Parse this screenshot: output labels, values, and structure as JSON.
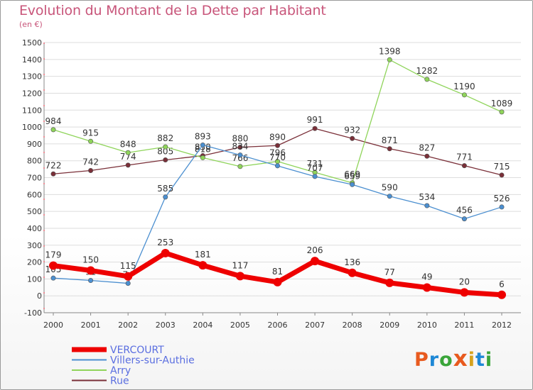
{
  "title": "Evolution du Montant de la Dette par Habitant",
  "subtitle": "(en €)",
  "logo": {
    "letters": [
      "P",
      "r",
      "o",
      "x",
      "i",
      "t",
      "i"
    ],
    "colors": [
      "#e85a1e",
      "#1e88d6",
      "#3aa53a",
      "#e85a1e",
      "#d6a21e",
      "#1e88d6",
      "#3aa53a"
    ]
  },
  "chart_data": {
    "type": "line",
    "x": [
      "2000",
      "2001",
      "2002",
      "2003",
      "2004",
      "2005",
      "2006",
      "2007",
      "2008",
      "2009",
      "2010",
      "2011",
      "2012"
    ],
    "ylim": [
      -100,
      1500
    ],
    "yticks": [
      "-100",
      "0",
      "100",
      "200",
      "300",
      "400",
      "500",
      "600",
      "700",
      "800",
      "900",
      "1000",
      "1100",
      "1200",
      "1300",
      "1400",
      "1500"
    ],
    "grid": "horizontal",
    "legend_position": "bottom-left",
    "series": [
      {
        "name": "Rue",
        "color": "#7a2f38",
        "values": [
          722,
          742,
          774,
          805,
          830,
          880,
          890,
          991,
          932,
          871,
          827,
          771,
          715
        ],
        "labels": [
          "722",
          "742",
          "774",
          "805",
          "830",
          "880",
          "890",
          "991",
          "932",
          "871",
          "827",
          "771",
          "715"
        ]
      },
      {
        "name": "Arry",
        "color": "#8fd45a",
        "values": [
          984,
          915,
          848,
          882,
          818,
          766,
          796,
          731,
          669,
          1398,
          1282,
          1190,
          1089
        ],
        "labels": [
          "984",
          "915",
          "848",
          "882",
          "818",
          "766",
          "796",
          "731",
          "669",
          "1398",
          "1282",
          "1190",
          "1089"
        ]
      },
      {
        "name": "Villers-sur-Authie",
        "color": "#4b8fd0",
        "values": [
          105,
          91,
          74,
          585,
          893,
          834,
          770,
          707,
          659,
          590,
          534,
          456,
          526
        ],
        "labels": [
          "105",
          "91",
          "74",
          "585",
          "893",
          "834",
          "770",
          "707",
          "659",
          "590",
          "534",
          "456",
          "526"
        ]
      },
      {
        "name": "VERCOURT",
        "color": "#ee0000",
        "values": [
          179,
          150,
          115,
          253,
          181,
          117,
          81,
          206,
          136,
          77,
          49,
          20,
          6
        ],
        "labels": [
          "179",
          "150",
          "115",
          "253",
          "181",
          "117",
          "81",
          "206",
          "136",
          "77",
          "49",
          "20",
          "6"
        ]
      }
    ]
  }
}
